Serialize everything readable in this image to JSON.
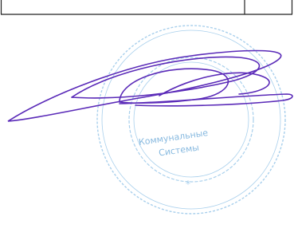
{
  "stamp": {
    "center_text": [
      "Коммунальные",
      "Системы"
    ]
  }
}
